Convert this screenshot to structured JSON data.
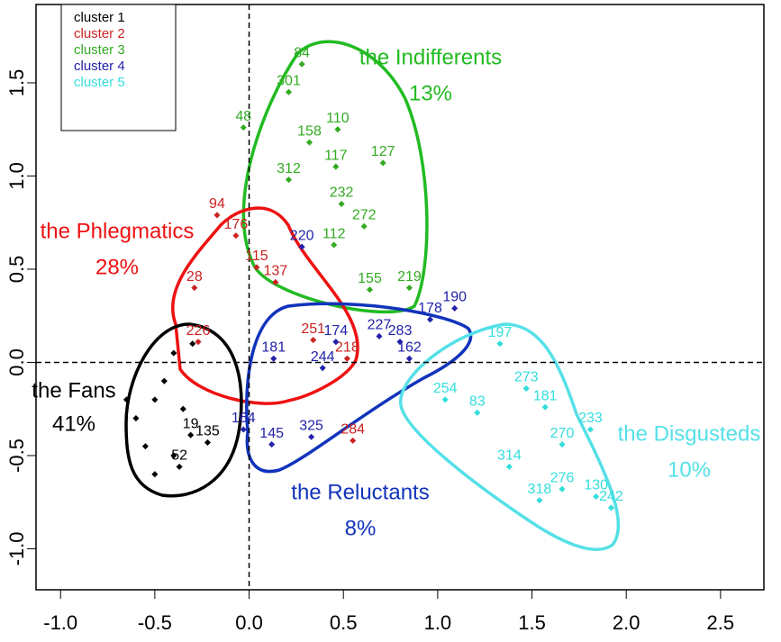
{
  "chart_data": {
    "type": "scatter",
    "xlim": [
      -1.13,
      2.73
    ],
    "ylim": [
      -1.22,
      1.92
    ],
    "xticks": [
      {
        "value": -1,
        "label": "-1.0"
      },
      -0.5,
      {
        "value": 0,
        "label": "0.0"
      },
      0.5,
      {
        "value": 1,
        "label": "1.0"
      },
      1.5,
      {
        "value": 2,
        "label": "2.0"
      },
      2.5
    ],
    "yticks": [
      {
        "value": -1,
        "label": "-1.0"
      },
      -0.5,
      {
        "value": 0,
        "label": "0.0"
      },
      0.5,
      {
        "value": 1,
        "label": "1.0"
      },
      1.5
    ],
    "hlines": [
      0
    ],
    "vlines": [
      0
    ],
    "series": [
      {
        "name": "cluster 1",
        "color": "#000000",
        "x": [
          -0.22,
          -0.37,
          -0.31,
          -0.6,
          -0.5,
          -0.45,
          -0.4,
          -0.55,
          -0.35,
          -0.3,
          -0.5,
          -0.65,
          -0.4
        ],
        "y": [
          -0.43,
          -0.56,
          -0.39,
          -0.3,
          -0.2,
          -0.1,
          0.05,
          -0.45,
          -0.25,
          0.1,
          -0.6,
          -0.2,
          -0.5
        ],
        "labels": [
          "135",
          "52",
          "19",
          null,
          null,
          null,
          null,
          null,
          null,
          null,
          null,
          null,
          null
        ]
      },
      {
        "name": "cluster 2",
        "color": "#cc2222",
        "x": [
          -0.07,
          0.04,
          0.14,
          0.34,
          0.52,
          0.55,
          -0.27,
          -0.29,
          -0.17
        ],
        "y": [
          0.68,
          0.51,
          0.43,
          0.12,
          0.02,
          -0.42,
          0.11,
          0.4,
          0.79
        ],
        "labels": [
          "176",
          "115",
          "137",
          "251",
          "218",
          "284",
          "226",
          "28",
          "94"
        ]
      },
      {
        "name": "cluster 3",
        "color": "#33aa22",
        "x": [
          0.28,
          0.21,
          0.47,
          0.32,
          0.71,
          0.46,
          0.21,
          0.49,
          0.61,
          0.45,
          0.64,
          0.85,
          -0.03
        ],
        "y": [
          1.6,
          1.45,
          1.25,
          1.18,
          1.07,
          1.05,
          0.98,
          0.85,
          0.73,
          0.63,
          0.39,
          0.4,
          1.26
        ],
        "labels": [
          "84",
          "301",
          "110",
          "158",
          "127",
          "117",
          "312",
          "232",
          "272",
          "112",
          "155",
          "219",
          "48"
        ]
      },
      {
        "name": "cluster 4",
        "color": "#2222aa",
        "x": [
          0.28,
          1.09,
          0.96,
          0.69,
          0.8,
          0.46,
          0.85,
          0.13,
          0.12,
          0.33,
          0.39,
          -0.03
        ],
        "y": [
          0.62,
          0.29,
          0.23,
          0.14,
          0.11,
          0.11,
          0.02,
          0.02,
          -0.44,
          -0.4,
          -0.03,
          -0.36
        ],
        "labels": [
          "220",
          "190",
          "178",
          "227",
          "283",
          "174",
          "162",
          "181",
          "145",
          "325",
          "244",
          "164"
        ]
      },
      {
        "name": "cluster 5",
        "color": "#33dddd",
        "x": [
          1.33,
          1.04,
          1.21,
          1.47,
          1.57,
          1.38,
          1.66,
          1.81,
          1.66,
          1.54,
          1.84,
          1.92
        ],
        "y": [
          0.1,
          -0.2,
          -0.27,
          -0.14,
          -0.24,
          -0.56,
          -0.44,
          -0.36,
          -0.68,
          -0.74,
          -0.72,
          -0.78
        ],
        "labels": [
          "197",
          "254",
          "83",
          "273",
          "181",
          "314",
          "270",
          "233",
          "276",
          "318",
          "130",
          "242"
        ]
      }
    ],
    "annotations": [
      {
        "text": "the Indifferents",
        "color": "#22bb22"
      },
      {
        "text": "13%",
        "color": "#22bb22"
      },
      {
        "text": "the Phlegmatics",
        "color": "#ee1111"
      },
      {
        "text": "28%",
        "color": "#ee1111"
      },
      {
        "text": "the Fans",
        "color": "#000000"
      },
      {
        "text": "41%",
        "color": "#000000"
      },
      {
        "text": "the Reluctants",
        "color": "#1133bb"
      },
      {
        "text": "8%",
        "color": "#1133bb"
      },
      {
        "text": "the Disgusteds",
        "color": "#55e0e8"
      },
      {
        "text": "10%",
        "color": "#55e0e8"
      }
    ]
  }
}
